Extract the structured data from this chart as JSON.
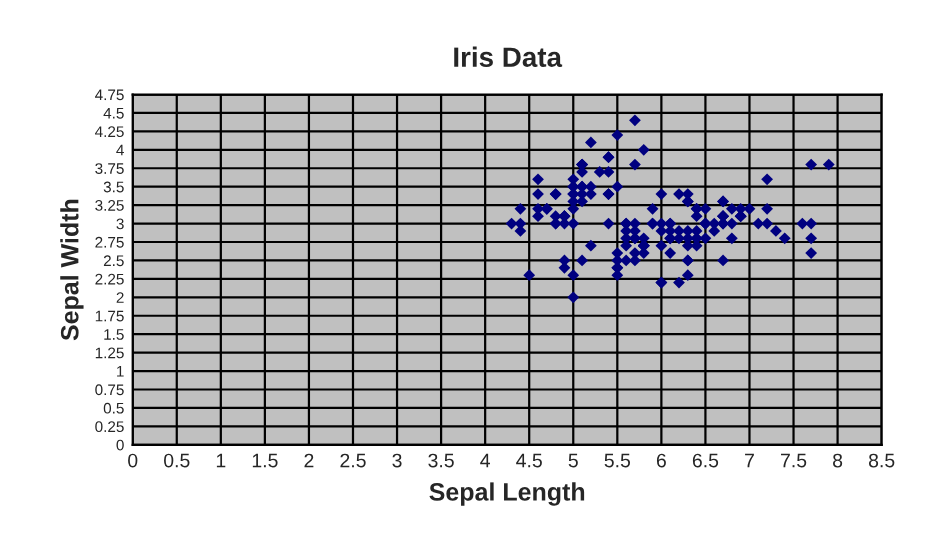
{
  "chart_data": {
    "type": "scatter",
    "title": "Iris Data",
    "xlabel": "Sepal Length",
    "ylabel": "Sepal Width",
    "xlim": [
      0,
      8.5
    ],
    "xticks": [
      0,
      0.5,
      1,
      1.5,
      2,
      2.5,
      3,
      3.5,
      4,
      4.5,
      5,
      5.5,
      6,
      6.5,
      7,
      7.5,
      8,
      8.5
    ],
    "ylim": [
      0,
      4.75
    ],
    "yticks": [
      0,
      0.25,
      0.5,
      0.75,
      1,
      1.25,
      1.5,
      1.75,
      2,
      2.25,
      2.5,
      2.75,
      3,
      3.25,
      3.5,
      3.75,
      4,
      4.25,
      4.5,
      4.75
    ],
    "grid": true,
    "marker": "diamond",
    "series": [
      {
        "color": "#000080",
        "x": [
          5.1,
          4.9,
          4.7,
          4.6,
          5.0,
          5.4,
          4.6,
          5.0,
          4.4,
          4.9,
          5.4,
          4.8,
          4.8,
          4.3,
          5.8,
          5.7,
          5.4,
          5.1,
          5.7,
          5.1,
          5.4,
          5.1,
          4.6,
          5.1,
          4.8,
          5.0,
          5.0,
          5.2,
          5.2,
          4.7,
          4.8,
          5.4,
          5.2,
          5.5,
          4.9,
          5.0,
          5.5,
          4.9,
          4.4,
          5.1,
          5.0,
          4.5,
          4.4,
          5.0,
          5.1,
          4.8,
          5.1,
          4.6,
          5.3,
          5.0,
          7.0,
          6.4,
          6.9,
          5.5,
          6.5,
          5.7,
          6.3,
          4.9,
          6.6,
          5.2,
          5.0,
          5.9,
          6.0,
          6.1,
          5.6,
          6.7,
          5.6,
          5.8,
          6.2,
          5.6,
          5.9,
          6.1,
          6.3,
          6.1,
          6.4,
          6.6,
          6.8,
          6.7,
          6.0,
          5.7,
          5.5,
          5.5,
          5.8,
          6.0,
          5.4,
          6.0,
          6.7,
          6.3,
          5.6,
          5.5,
          5.5,
          6.1,
          5.8,
          5.0,
          5.6,
          5.7,
          5.7,
          6.2,
          5.1,
          5.7,
          6.3,
          5.8,
          7.1,
          6.3,
          6.5,
          7.6,
          4.9,
          7.3,
          6.7,
          7.2,
          6.5,
          6.4,
          6.8,
          5.7,
          5.8,
          6.4,
          6.5,
          7.7,
          7.7,
          6.0,
          6.9,
          5.6,
          7.7,
          6.3,
          6.7,
          7.2,
          6.2,
          6.1,
          6.4,
          7.2,
          7.4,
          7.9,
          6.4,
          6.3,
          6.1,
          7.7,
          6.3,
          6.4,
          6.0,
          6.9,
          6.7,
          6.9,
          5.8,
          6.8,
          6.7,
          6.7,
          6.3,
          6.5,
          6.2,
          5.9
        ],
        "values": [
          3.5,
          3.0,
          3.2,
          3.1,
          3.6,
          3.9,
          3.4,
          3.4,
          2.9,
          3.1,
          3.7,
          3.4,
          3.0,
          3.0,
          4.0,
          4.4,
          3.9,
          3.5,
          3.8,
          3.8,
          3.4,
          3.7,
          3.6,
          3.3,
          3.4,
          3.0,
          3.4,
          3.5,
          3.4,
          3.2,
          3.1,
          3.4,
          4.1,
          4.2,
          3.1,
          3.2,
          3.5,
          3.1,
          3.0,
          3.4,
          3.5,
          2.3,
          3.2,
          3.5,
          3.8,
          3.0,
          3.8,
          3.2,
          3.7,
          3.3,
          3.2,
          3.2,
          3.1,
          2.3,
          2.8,
          2.8,
          3.3,
          2.4,
          2.9,
          2.7,
          2.0,
          3.0,
          2.2,
          2.9,
          2.9,
          3.1,
          3.0,
          2.7,
          2.2,
          2.5,
          3.2,
          2.8,
          2.5,
          2.8,
          2.9,
          3.0,
          2.8,
          3.0,
          2.9,
          2.6,
          2.4,
          2.4,
          2.7,
          2.7,
          3.0,
          3.4,
          3.1,
          2.3,
          3.0,
          2.5,
          2.6,
          3.0,
          2.6,
          2.3,
          2.7,
          3.0,
          2.9,
          2.9,
          2.5,
          2.8,
          3.3,
          2.7,
          3.0,
          2.9,
          3.0,
          3.0,
          2.5,
          2.9,
          2.5,
          3.6,
          3.2,
          2.7,
          3.0,
          2.5,
          2.8,
          3.2,
          3.0,
          3.8,
          2.6,
          2.2,
          3.2,
          2.8,
          2.8,
          2.7,
          3.3,
          3.2,
          2.8,
          3.0,
          2.8,
          3.0,
          2.8,
          3.8,
          2.8,
          2.8,
          2.6,
          3.0,
          3.4,
          3.1,
          3.0,
          3.1,
          3.1,
          3.1,
          2.7,
          3.2,
          3.3,
          3.0,
          2.5,
          3.0,
          3.4,
          3.0
        ]
      }
    ]
  }
}
